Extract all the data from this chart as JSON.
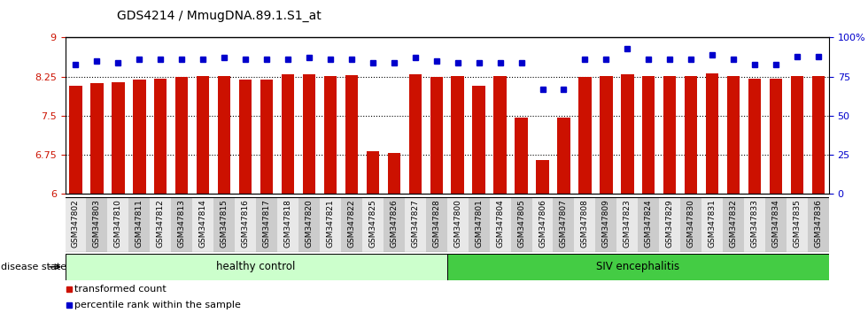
{
  "title": "GDS4214 / MmugDNA.89.1.S1_at",
  "samples": [
    "GSM347802",
    "GSM347803",
    "GSM347810",
    "GSM347811",
    "GSM347812",
    "GSM347813",
    "GSM347814",
    "GSM347815",
    "GSM347816",
    "GSM347817",
    "GSM347818",
    "GSM347820",
    "GSM347821",
    "GSM347822",
    "GSM347825",
    "GSM347826",
    "GSM347827",
    "GSM347828",
    "GSM347800",
    "GSM347801",
    "GSM347804",
    "GSM347805",
    "GSM347806",
    "GSM347807",
    "GSM347808",
    "GSM347809",
    "GSM347823",
    "GSM347824",
    "GSM347829",
    "GSM347830",
    "GSM347831",
    "GSM347832",
    "GSM347833",
    "GSM347834",
    "GSM347835",
    "GSM347836"
  ],
  "bar_values": [
    8.08,
    8.12,
    8.14,
    8.19,
    8.22,
    8.25,
    8.27,
    8.27,
    8.19,
    8.19,
    8.29,
    8.29,
    8.27,
    8.28,
    6.82,
    6.78,
    8.29,
    8.25,
    8.27,
    8.08,
    8.27,
    7.46,
    6.65,
    7.46,
    8.25,
    8.27,
    8.29,
    8.27,
    8.27,
    8.27,
    8.31,
    8.27,
    8.21,
    8.21,
    8.27,
    8.27
  ],
  "percentile_values": [
    83,
    85,
    84,
    86,
    86,
    86,
    86,
    87,
    86,
    86,
    86,
    87,
    86,
    86,
    84,
    84,
    87,
    85,
    84,
    84,
    84,
    84,
    67,
    67,
    86,
    86,
    93,
    86,
    86,
    86,
    89,
    86,
    83,
    83,
    88,
    88
  ],
  "healthy_count": 18,
  "siv_count": 18,
  "ymin": 6.0,
  "ymax": 9.0,
  "yticks_left": [
    6.0,
    6.75,
    7.5,
    8.25,
    9.0
  ],
  "ytick_labels_left": [
    "6",
    "6.75",
    "7.5",
    "8.25",
    "9"
  ],
  "yticks_right": [
    0,
    25,
    50,
    75,
    100
  ],
  "ytick_labels_right": [
    "0",
    "25",
    "50",
    "75",
    "100%"
  ],
  "bar_color": "#cc1100",
  "dot_color": "#0000cc",
  "healthy_bg": "#ccffcc",
  "siv_bg": "#44cc44",
  "grid_color": "#000000",
  "legend_red_label": "transformed count",
  "legend_blue_label": "percentile rank within the sample",
  "disease_state_label": "disease state",
  "healthy_label": "healthy control",
  "siv_label": "SIV encephalitis"
}
